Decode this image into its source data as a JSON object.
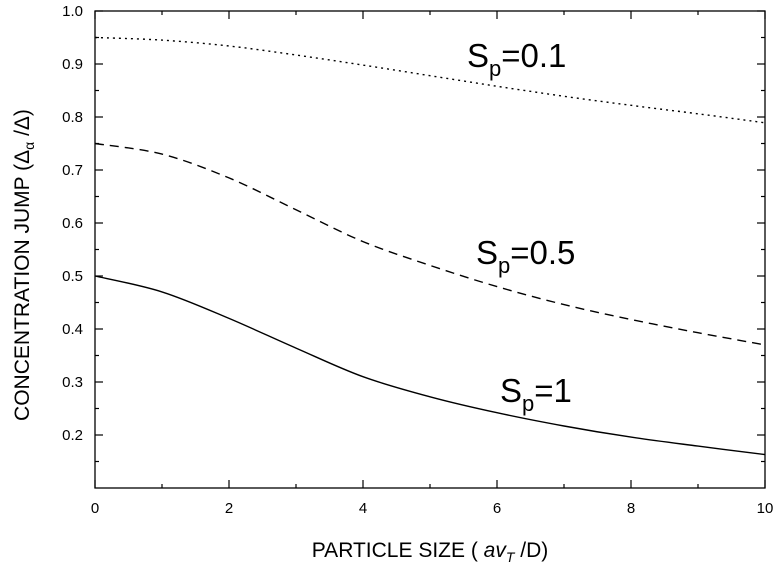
{
  "chart_data": {
    "type": "line",
    "xlabel": {
      "prefix": "PARTICLE  SIZE (  ",
      "italic": "av",
      "subscript": "T",
      "suffix": " /D)"
    },
    "ylabel": {
      "prefix": "CONCENTRATION  JUMP  (",
      "delta": "Δ",
      "subscript": "α",
      "suffix": " /Δ)"
    },
    "xlim": [
      0,
      10
    ],
    "ylim": [
      0.1,
      1.0
    ],
    "x_ticks": [
      "0",
      "2",
      "4",
      "6",
      "8",
      "10"
    ],
    "y_ticks": [
      "0.2",
      "0.3",
      "0.4",
      "0.5",
      "0.6",
      "0.7",
      "0.8",
      "0.9",
      "1.0"
    ],
    "grid": false,
    "series": [
      {
        "name": "Sp=0.1",
        "label": {
          "base": "S",
          "sub": "p",
          "rest": "=0.1"
        },
        "style": "dotted",
        "x": [
          0,
          1,
          2,
          3,
          4,
          5,
          6,
          7,
          8,
          9,
          10
        ],
        "y": [
          0.95,
          0.945,
          0.934,
          0.917,
          0.898,
          0.878,
          0.858,
          0.839,
          0.822,
          0.806,
          0.789
        ]
      },
      {
        "name": "Sp=0.5",
        "label": {
          "base": "S",
          "sub": "p",
          "rest": "=0.5"
        },
        "style": "dashed",
        "x": [
          0,
          1,
          2,
          3,
          4,
          5,
          6,
          7,
          8,
          9,
          10
        ],
        "y": [
          0.75,
          0.73,
          0.685,
          0.625,
          0.565,
          0.52,
          0.48,
          0.446,
          0.418,
          0.393,
          0.37
        ]
      },
      {
        "name": "Sp=1",
        "label": {
          "base": "S",
          "sub": "p",
          "rest": "=1"
        },
        "style": "solid",
        "x": [
          0,
          1,
          2,
          3,
          4,
          5,
          6,
          7,
          8,
          9,
          10
        ],
        "y": [
          0.5,
          0.47,
          0.42,
          0.364,
          0.31,
          0.272,
          0.242,
          0.217,
          0.196,
          0.179,
          0.163
        ]
      }
    ]
  }
}
